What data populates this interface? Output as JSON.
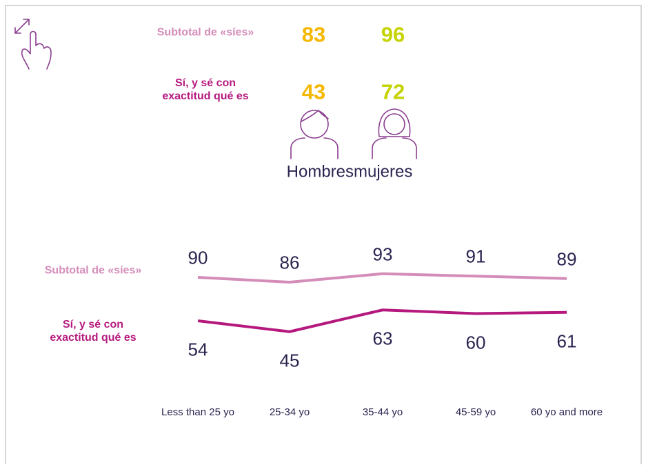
{
  "gender": {
    "rows": [
      "Subtotal de «síes»",
      "Sí, y sé con exactitud qué es"
    ],
    "row_colors": [
      "#d48cb9",
      "#b5197e"
    ],
    "groups": [
      {
        "name": "Hombres",
        "color": "#f5b800",
        "values": [
          83,
          43
        ]
      },
      {
        "name": "mujeres",
        "color": "#c5d300",
        "values": [
          96,
          72
        ]
      }
    ]
  },
  "chart_data": {
    "type": "line",
    "categories": [
      "Less than 25 yo",
      "25-34 yo",
      "35-44 yo",
      "45-59 yo",
      "60 yo and more"
    ],
    "series": [
      {
        "name": "Subtotal de «síes»",
        "color": "#d48cb9",
        "values": [
          90,
          86,
          93,
          91,
          89
        ]
      },
      {
        "name": "Sí, y sé con exactitud qué es",
        "color": "#b5197e",
        "values": [
          54,
          45,
          63,
          60,
          61
        ]
      }
    ]
  }
}
